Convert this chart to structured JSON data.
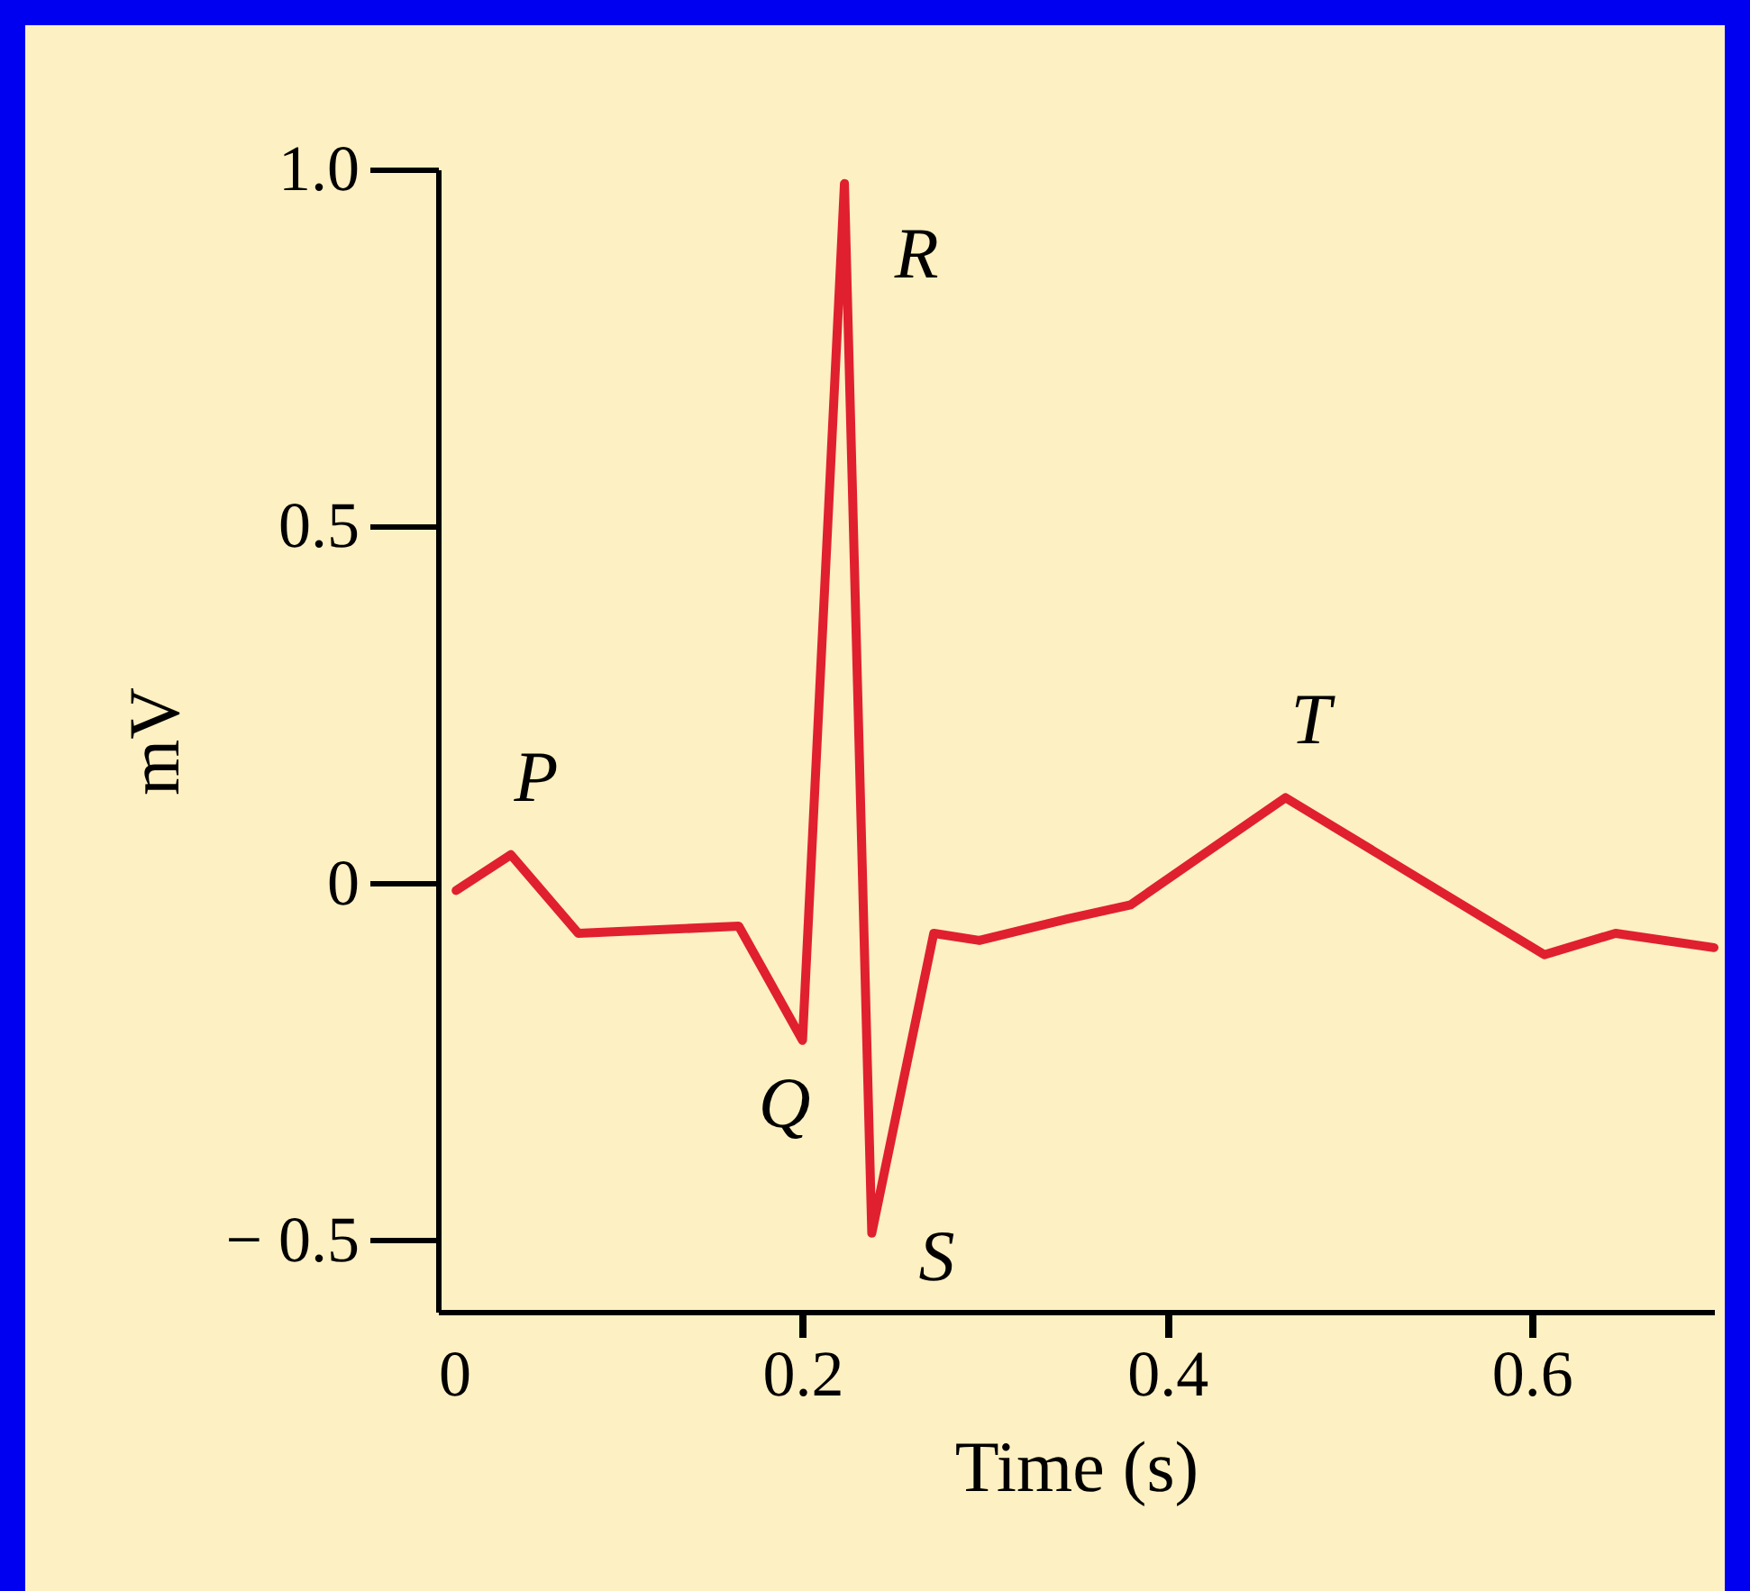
{
  "chart_data": {
    "type": "line",
    "xlabel": "Time (s)",
    "ylabel": "mV",
    "x": [
      0.01,
      0.04,
      0.077,
      0.165,
      0.2,
      0.223,
      0.238,
      0.272,
      0.297,
      0.345,
      0.38,
      0.414,
      0.465,
      0.607,
      0.646,
      0.7
    ],
    "series": [
      {
        "color": "#e0202e",
        "values": [
          -0.01,
          0.04,
          -0.07,
          -0.06,
          -0.22,
          0.98,
          -0.49,
          -0.07,
          -0.08,
          -0.05,
          -0.03,
          0.03,
          0.12,
          -0.1,
          -0.07,
          -0.09
        ]
      }
    ],
    "xlim": [
      0,
      0.7
    ],
    "xticks": [
      0,
      0.2,
      0.4,
      0.6
    ],
    "ylim": [
      -0.6,
      1.0
    ],
    "yticks": [
      {
        "value": -0.5,
        "label": "− 0.5"
      },
      0,
      0.5,
      {
        "value": 1,
        "label": "1.0"
      }
    ],
    "grid": false,
    "marker": "none",
    "line_style": "solid",
    "annotations": [
      {
        "text": "P",
        "x": 0.04,
        "y": 0.04
      },
      {
        "text": "Q",
        "x": 0.2,
        "y": -0.22
      },
      {
        "text": "R",
        "x": 0.223,
        "y": 0.98
      },
      {
        "text": "S",
        "x": 0.238,
        "y": -0.49
      },
      {
        "text": "T",
        "x": 0.465,
        "y": 0.12
      }
    ]
  }
}
